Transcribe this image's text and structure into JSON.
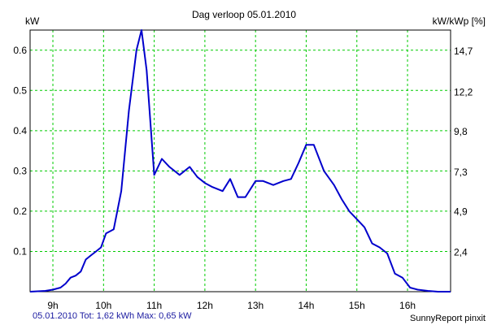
{
  "chart_data": {
    "type": "line",
    "title": "Dag  verloop 05.01.2010",
    "ylabel_left": "kW",
    "ylabel_right": "kW/kWp [%]",
    "xlabel": "",
    "x_unit": "hour",
    "xlim": [
      8.55,
      16.85
    ],
    "ylim_left": [
      0,
      0.65
    ],
    "ylim_right": [
      0,
      16.0
    ],
    "x_ticks": [
      {
        "value": 9,
        "label": "9h"
      },
      {
        "value": 10,
        "label": "10h"
      },
      {
        "value": 11,
        "label": "11h"
      },
      {
        "value": 12,
        "label": "12h"
      },
      {
        "value": 13,
        "label": "13h"
      },
      {
        "value": 14,
        "label": "14h"
      },
      {
        "value": 15,
        "label": "15h"
      },
      {
        "value": 16,
        "label": "16h"
      }
    ],
    "y_ticks_left": [
      {
        "value": 0.1,
        "label": "0.1"
      },
      {
        "value": 0.2,
        "label": "0.2"
      },
      {
        "value": 0.3,
        "label": "0.3"
      },
      {
        "value": 0.4,
        "label": "0.4"
      },
      {
        "value": 0.5,
        "label": "0.5"
      },
      {
        "value": 0.6,
        "label": "0.6"
      }
    ],
    "y_ticks_right": [
      {
        "value": 2.4,
        "label": "2,4"
      },
      {
        "value": 4.9,
        "label": "4,9"
      },
      {
        "value": 7.3,
        "label": "7,3"
      },
      {
        "value": 9.8,
        "label": "9,8"
      },
      {
        "value": 12.2,
        "label": "12,2"
      },
      {
        "value": 14.7,
        "label": "14,7"
      }
    ],
    "grid": true,
    "grid_color": "#00cc00",
    "series": [
      {
        "color": "#0000cc",
        "x": [
          8.55,
          8.85,
          9.0,
          9.15,
          9.25,
          9.35,
          9.45,
          9.55,
          9.65,
          9.75,
          9.85,
          9.95,
          10.05,
          10.2,
          10.35,
          10.5,
          10.65,
          10.75,
          10.85,
          11.0,
          11.15,
          11.3,
          11.5,
          11.7,
          11.85,
          12.0,
          12.15,
          12.35,
          12.5,
          12.65,
          12.8,
          13.0,
          13.15,
          13.35,
          13.55,
          13.7,
          13.85,
          14.0,
          14.15,
          14.35,
          14.55,
          14.7,
          14.85,
          15.0,
          15.15,
          15.3,
          15.45,
          15.6,
          15.75,
          15.9,
          16.05,
          16.2,
          16.4,
          16.6,
          16.85
        ],
        "y": [
          0.0,
          0.002,
          0.005,
          0.01,
          0.02,
          0.035,
          0.04,
          0.05,
          0.08,
          0.09,
          0.1,
          0.11,
          0.145,
          0.155,
          0.25,
          0.45,
          0.6,
          0.65,
          0.55,
          0.29,
          0.33,
          0.31,
          0.29,
          0.31,
          0.285,
          0.27,
          0.26,
          0.25,
          0.28,
          0.235,
          0.235,
          0.275,
          0.275,
          0.265,
          0.275,
          0.28,
          0.32,
          0.365,
          0.365,
          0.3,
          0.265,
          0.23,
          0.2,
          0.18,
          0.16,
          0.12,
          0.11,
          0.095,
          0.045,
          0.035,
          0.01,
          0.005,
          0.002,
          0.0,
          0.0
        ]
      }
    ],
    "footer_left": "05.01.2010 Tot: 1,62 kWh Max: 0,65 kW",
    "footer_right": "SunnyReport pinxit"
  }
}
